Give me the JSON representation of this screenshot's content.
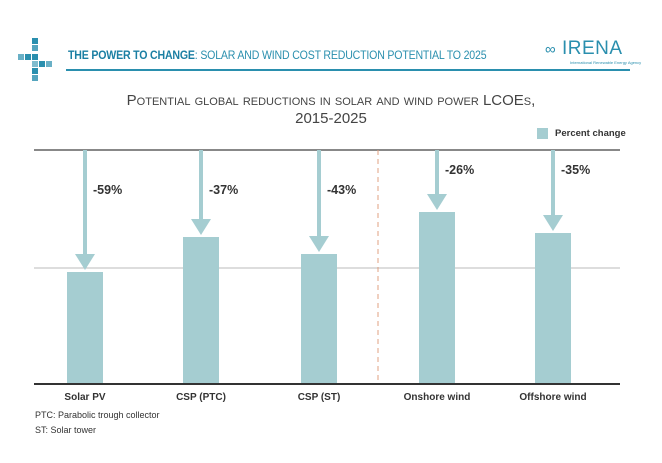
{
  "header": {
    "title_bold": "THE POWER TO CHANGE",
    "title_rest": ": SOLAR AND WIND COST REDUCTION POTENTIAL TO 2025",
    "logo_text": "IRENA",
    "logo_sub": "International Renewable Energy Agency"
  },
  "colors": {
    "bar": "#a5cdd1",
    "accent": "#2a8fae"
  },
  "chart_data": {
    "type": "bar",
    "title": "Potential global reductions in solar and wind power LCOEs,",
    "subtitle": "2015-2025",
    "categories": [
      "Solar PV",
      "CSP (PTC)",
      "CSP (ST)",
      "Onshore wind",
      "Offshore wind"
    ],
    "series": [
      {
        "name": "Percent change",
        "values": [
          -59,
          -37,
          -43,
          -26,
          -35
        ]
      }
    ],
    "data_labels": [
      "-59%",
      "-37%",
      "-43%",
      "-26%",
      "-35%"
    ],
    "legend": "top-right",
    "grid": true
  },
  "footnotes": [
    "PTC: Parabolic trough collector",
    "ST: Solar tower"
  ]
}
